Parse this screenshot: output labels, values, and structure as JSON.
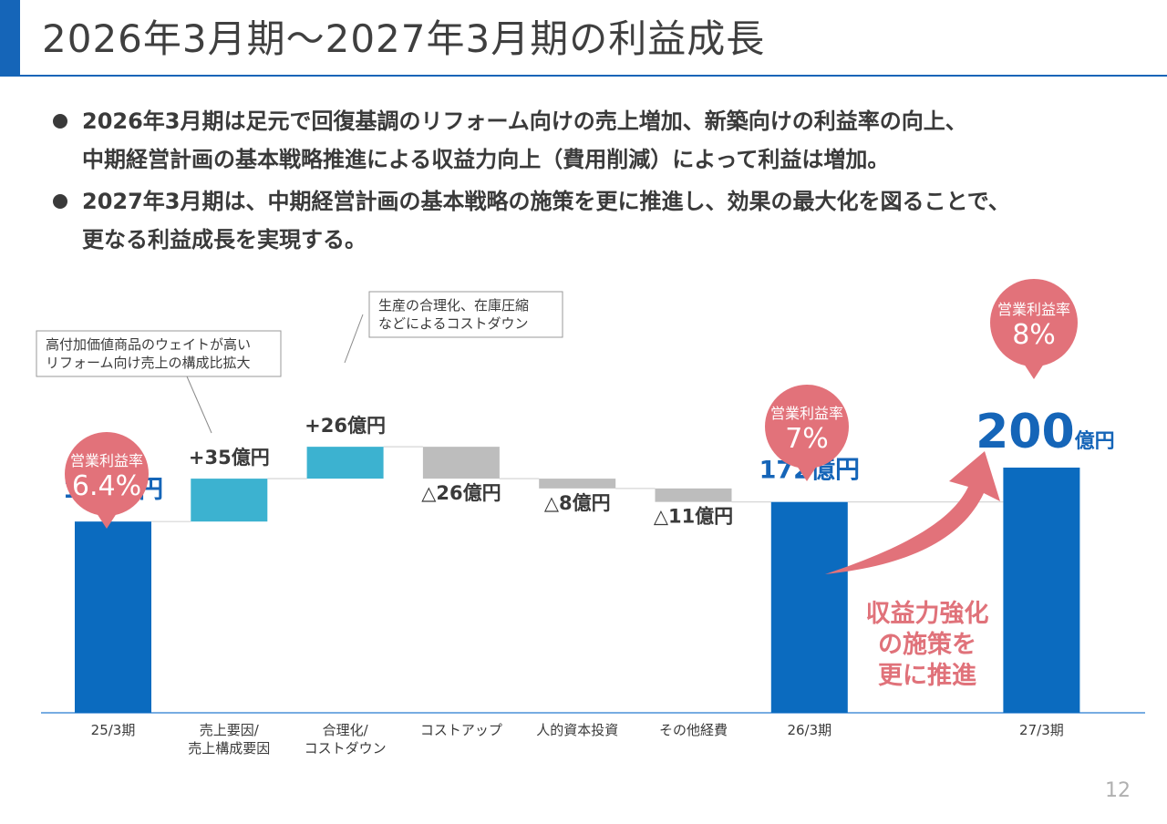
{
  "header": {
    "title": "2026年3月期～2027年3月期の利益成長"
  },
  "bullets": [
    {
      "lines": [
        "2026年3月期は足元で回復基調のリフォーム向けの売上増加、新築向けの利益率の向上、",
        "中期経営計画の基本戦略推進による収益力向上（費用削減）によって利益は増加。"
      ]
    },
    {
      "lines": [
        "2027年3月期は、中期経営計画の基本戦略の施策を更に推進し、効果の最大化を図ることで、",
        "更なる利益成長を実現する。"
      ]
    }
  ],
  "colors": {
    "accent": "#1565b8",
    "total_bar": "#0b6bbf",
    "increase_bar": "#3cb2d0",
    "decrease_bar": "#bdbdbd",
    "highlight": "#e2727a"
  },
  "chart_data": {
    "type": "bar",
    "subtype": "waterfall",
    "unit": "億円",
    "ylim": [
      0,
      210
    ],
    "grid": false,
    "bars": [
      {
        "category_lines": [
          "25/3期"
        ],
        "kind": "total",
        "start": 0,
        "end": 156,
        "label": "156億円"
      },
      {
        "category_lines": [
          "売上要因/",
          "売上構成要因"
        ],
        "kind": "increase",
        "start": 156,
        "end": 191,
        "label": "+35億円"
      },
      {
        "category_lines": [
          "合理化/",
          "コストダウン"
        ],
        "kind": "increase",
        "start": 191,
        "end": 217,
        "label": "+26億円"
      },
      {
        "category_lines": [
          "コストアップ"
        ],
        "kind": "decrease",
        "start": 217,
        "end": 191,
        "label": "△26億円"
      },
      {
        "category_lines": [
          "人的資本投資"
        ],
        "kind": "decrease",
        "start": 191,
        "end": 183,
        "label": "△8億円"
      },
      {
        "category_lines": [
          "その他経費"
        ],
        "kind": "decrease",
        "start": 183,
        "end": 172,
        "label": "△11億円"
      },
      {
        "category_lines": [
          "26/3期"
        ],
        "kind": "total",
        "start": 0,
        "end": 172,
        "label": "172億円"
      },
      {
        "category_lines": [
          ""
        ],
        "kind": "spacer",
        "start": 0,
        "end": 0,
        "label": ""
      },
      {
        "category_lines": [
          "27/3期"
        ],
        "kind": "total",
        "start": 0,
        "end": 200,
        "label": "200",
        "label_unit": "億円"
      }
    ],
    "margin_badges": [
      {
        "label": "営業利益率",
        "value": "6.4%"
      },
      {
        "label": "営業利益率",
        "value": "7%"
      },
      {
        "label": "営業利益率",
        "value": "8%"
      }
    ],
    "notes": [
      {
        "lines": [
          "高付加価値商品のウェイトが高い",
          "リフォーム向け売上の構成比拡大"
        ]
      },
      {
        "lines": [
          "生産の合理化、在庫圧縮",
          "などによるコストダウン"
        ]
      }
    ],
    "arrow_text_lines": [
      "収益力強化",
      "の施策を",
      "更に推進"
    ]
  },
  "footer": {
    "page_number": "12"
  }
}
